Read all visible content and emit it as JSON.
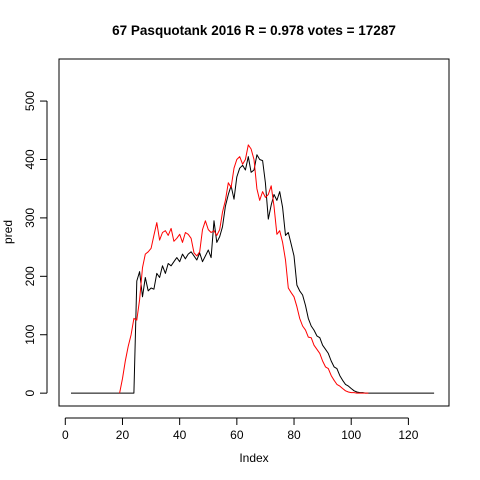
{
  "chart_data": {
    "type": "line",
    "title": "67 Pasquotank 2016 R = 0.978 votes = 17287",
    "xlabel": "Index",
    "ylabel": "pred",
    "xlim": [
      -2.2,
      134.2
    ],
    "ylim": [
      -22,
      572
    ],
    "x_ticks": [
      0,
      20,
      40,
      60,
      80,
      100,
      120
    ],
    "y_ticks": [
      0,
      100,
      200,
      300,
      400,
      500
    ],
    "grid": false,
    "legend": "none",
    "colors": {
      "actual": "#000000",
      "pred": "#ff0000"
    },
    "series": [
      {
        "color": "#000000",
        "x_start": 2,
        "y": [
          0,
          0,
          0,
          0,
          0,
          0,
          0,
          0,
          0,
          0,
          0,
          0,
          0,
          0,
          0,
          0,
          0,
          0,
          0,
          0,
          0,
          0,
          0,
          192,
          208,
          165,
          198,
          175,
          180,
          178,
          205,
          198,
          218,
          205,
          222,
          218,
          225,
          232,
          225,
          238,
          230,
          238,
          242,
          235,
          228,
          240,
          225,
          235,
          245,
          232,
          295,
          258,
          268,
          285,
          320,
          340,
          355,
          332,
          370,
          385,
          390,
          382,
          405,
          378,
          382,
          408,
          400,
          398,
          360,
          298,
          322,
          340,
          330,
          345,
          318,
          270,
          275,
          255,
          235,
          185,
          175,
          168,
          150,
          128,
          115,
          108,
          98,
          95,
          82,
          75,
          68,
          55,
          45,
          42,
          30,
          22,
          15,
          12,
          8,
          4,
          2,
          1,
          1,
          0,
          0,
          0,
          0,
          0,
          0,
          0,
          0,
          0,
          0,
          0,
          0,
          0,
          0,
          0,
          0,
          0,
          0,
          0,
          0,
          0,
          0,
          0,
          0,
          0
        ]
      },
      {
        "color": "#ff0000",
        "x_start": 19,
        "y": [
          0,
          25,
          55,
          80,
          100,
          128,
          125,
          160,
          215,
          238,
          242,
          248,
          270,
          292,
          262,
          275,
          278,
          270,
          282,
          260,
          265,
          272,
          258,
          275,
          272,
          265,
          240,
          235,
          242,
          280,
          295,
          280,
          275,
          278,
          270,
          280,
          310,
          330,
          360,
          352,
          385,
          400,
          405,
          392,
          400,
          425,
          418,
          400,
          350,
          330,
          345,
          335,
          340,
          355,
          320,
          272,
          278,
          258,
          228,
          180,
          172,
          165,
          148,
          128,
          115,
          108,
          96,
          95,
          82,
          75,
          68,
          55,
          45,
          42,
          30,
          22,
          15,
          12,
          8,
          4,
          2,
          1,
          1,
          0,
          0,
          0,
          0,
          0
        ]
      }
    ]
  }
}
